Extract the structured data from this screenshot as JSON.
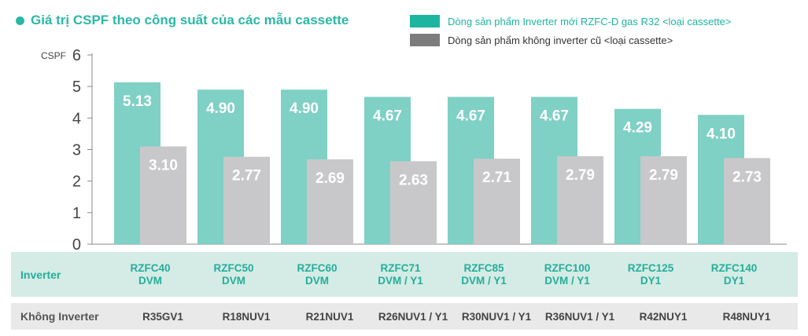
{
  "title": "Giá trị CSPF theo công suất của các mẫu cassette",
  "legend": [
    {
      "label": "Dòng sản phẩm Inverter mới RZFC-D gas R32 <loại cassette>",
      "color": "#1db59f",
      "text_color": "#1db59f"
    },
    {
      "label": "Dòng sản phẩm không inverter cũ <loại cassette>",
      "color": "#7c7c7c",
      "text_color": "#333333"
    }
  ],
  "table": {
    "inverter_label": "Inverter",
    "noninverter_label": "Không Inverter",
    "inverter_models": [
      "RZFC40\nDVM",
      "RZFC50\nDVM",
      "RZFC60\nDVM",
      "RZFC71\nDVM / Y1",
      "RZFC85\nDVM / Y1",
      "RZFC100\nDVM / Y1",
      "RZFC125\nDY1",
      "RZFC140\nDY1"
    ],
    "noninverter_models": [
      "R35GV1",
      "R18NUV1",
      "R21NUV1",
      "R26NUV1 / Y1",
      "R30NUV1 / Y1",
      "R36NUV1 / Y1",
      "R42NUY1",
      "R48NUY1"
    ]
  },
  "chart_data": {
    "type": "bar",
    "ylabel": "CSPF",
    "ylim": [
      0,
      6
    ],
    "yticks": [
      0,
      1,
      2,
      3,
      4,
      5,
      6
    ],
    "categories": [
      "RZFC40 DVM",
      "RZFC50 DVM",
      "RZFC60 DVM",
      "RZFC71 DVM / Y1",
      "RZFC85 DVM / Y1",
      "RZFC100 DVM / Y1",
      "RZFC125 DY1",
      "RZFC140 DY1"
    ],
    "series": [
      {
        "name": "Dòng sản phẩm Inverter mới RZFC-D gas R32 <loại cassette>",
        "color": "#7fd0c5",
        "values": [
          5.13,
          4.9,
          4.9,
          4.67,
          4.67,
          4.67,
          4.29,
          4.1
        ],
        "labels": [
          "5.13",
          "4.90",
          "4.90",
          "4.67",
          "4.67",
          "4.67",
          "4.29",
          "4.10"
        ]
      },
      {
        "name": "Dòng sản phẩm không inverter cũ <loại cassette>",
        "color": "#c8c8ca",
        "values": [
          3.1,
          2.77,
          2.69,
          2.63,
          2.71,
          2.79,
          2.79,
          2.73
        ],
        "labels": [
          "3.10",
          "2.77",
          "2.69",
          "2.63",
          "2.71",
          "2.79",
          "2.79",
          "2.73"
        ]
      }
    ],
    "grid": false
  }
}
